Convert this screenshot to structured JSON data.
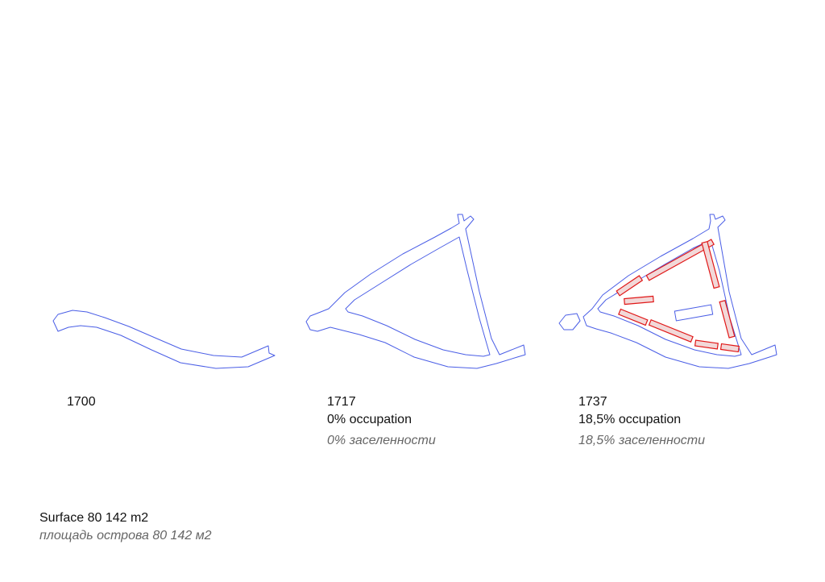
{
  "panels": [
    {
      "id": "1700",
      "year": "1700",
      "occupation": "",
      "occupation_ru": ""
    },
    {
      "id": "1717",
      "year": "1717",
      "occupation": "0% occupation",
      "occupation_ru": "0% заселенности"
    },
    {
      "id": "1737",
      "year": "1737",
      "occupation": "18,5% occupation",
      "occupation_ru": "18,5% заселенности"
    }
  ],
  "summary": {
    "surface": "Surface 80 142 m2",
    "surface_ru": "площадь острова 80 142 м2"
  },
  "colors": {
    "outline": "#4a5ee6",
    "building_stroke": "#e01818",
    "building_fill": "#f2d8d8"
  },
  "occupied_share": [
    0,
    0,
    0.185
  ]
}
